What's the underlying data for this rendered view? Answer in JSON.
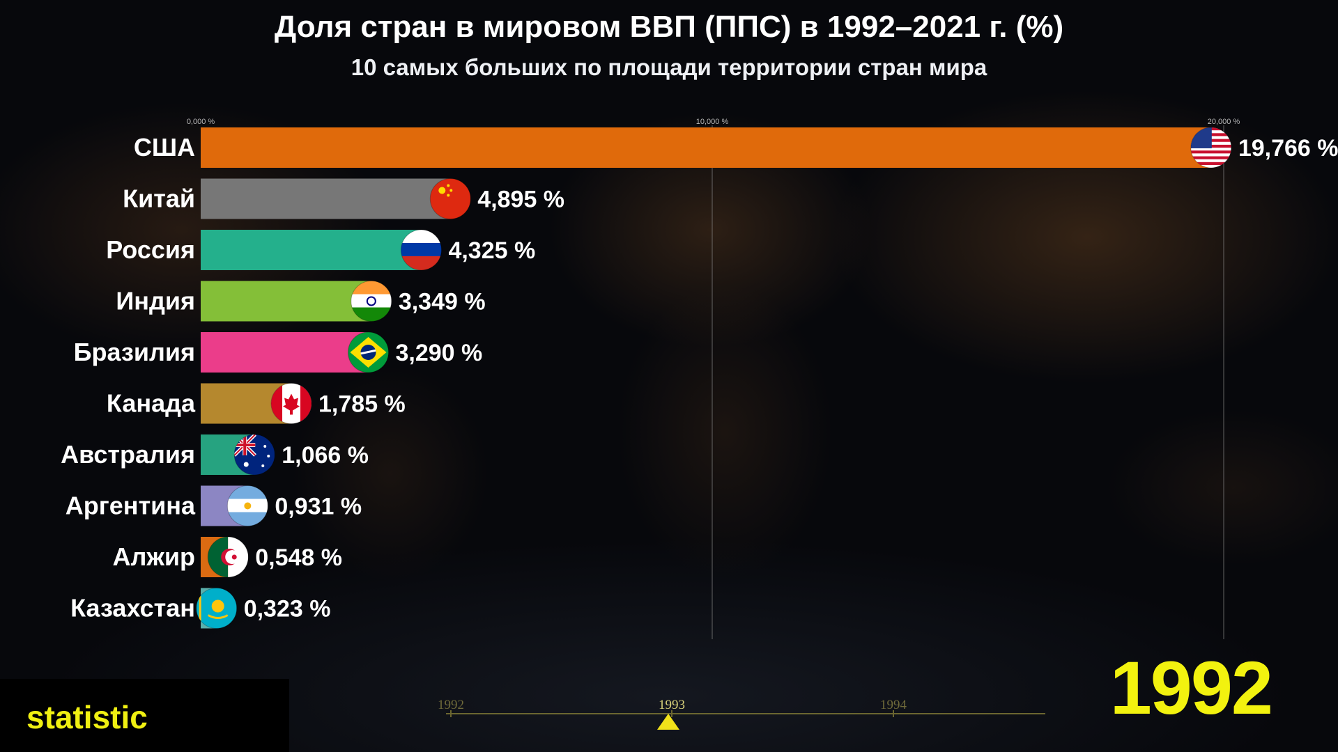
{
  "title": "Доля стран в мировом ВВП (ППС) в 1992–2021 г. (%)",
  "subtitle": "10 самых больших по площади территории стран мира",
  "year": "1992",
  "brand": "statistic",
  "timeline": {
    "labels": [
      "1992",
      "1993",
      "1994"
    ],
    "active": "1993"
  },
  "colors": {
    "accent_yellow": "#f2f20f",
    "gridline": "#8a8a8a"
  },
  "chart_data": {
    "type": "bar",
    "orientation": "horizontal",
    "title": "Доля стран в мировом ВВП (ППС) в 1992–2021 г. (%)",
    "subtitle": "10 самых больших по площади территории стран мира",
    "xlim": [
      0,
      20
    ],
    "ticks": [
      {
        "value": 0,
        "label": "0,000 %"
      },
      {
        "value": 10,
        "label": "10,000 %"
      },
      {
        "value": 20,
        "label": "20,000 %"
      }
    ],
    "grid": true,
    "categories": [
      "США",
      "Китай",
      "Россия",
      "Индия",
      "Бразилия",
      "Канада",
      "Австралия",
      "Аргентина",
      "Алжир",
      "Казахстан"
    ],
    "values": [
      19.766,
      4.895,
      4.325,
      3.349,
      3.29,
      1.785,
      1.066,
      0.931,
      0.548,
      0.323
    ],
    "value_labels": [
      "19,766 %",
      "4,895 %",
      "4,325 %",
      "3,349 %",
      "3,290 %",
      "1,785 %",
      "1,066 %",
      "0,931 %",
      "0,548 %",
      "0,323 %"
    ],
    "bar_colors": [
      "#e06a0b",
      "#777777",
      "#24b08c",
      "#84bf38",
      "#eb3d8a",
      "#b5882e",
      "#26a380",
      "#8c86c3",
      "#db6b12",
      "#5ab0ac"
    ],
    "flags": [
      "usa-flag",
      "china-flag",
      "russia-flag",
      "india-flag",
      "brazil-flag",
      "canada-flag",
      "australia-flag",
      "argentina-flag",
      "algeria-flag",
      "kazakhstan-flag"
    ]
  }
}
